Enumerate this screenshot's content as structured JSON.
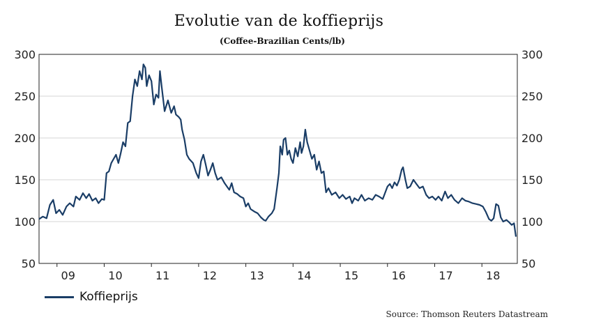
{
  "chart_data": {
    "type": "line",
    "title": "Evolutie van de koffieprijs",
    "subtitle": "(Coffee-Brazilian Cents/lb)",
    "source": "Source: Thomson Reuters Datastream",
    "ylim": [
      50,
      300
    ],
    "y_ticks": [
      50,
      100,
      150,
      200,
      250,
      300
    ],
    "y_tick_labels": [
      "50",
      "100",
      "150",
      "200",
      "250",
      "300"
    ],
    "x_range": [
      2008.62,
      2018.75
    ],
    "x_tick_labels": [
      {
        "label": "09",
        "x": 2009.0
      },
      {
        "label": "10",
        "x": 2010.0
      },
      {
        "label": "11",
        "x": 2011.0
      },
      {
        "label": "12",
        "x": 2012.0
      },
      {
        "label": "13",
        "x": 2013.0
      },
      {
        "label": "14",
        "x": 2014.0
      },
      {
        "label": "15",
        "x": 2015.0
      },
      {
        "label": "16",
        "x": 2016.0
      },
      {
        "label": "17",
        "x": 2017.0
      },
      {
        "label": "18",
        "x": 2018.0
      }
    ],
    "grid": "horizontal",
    "legend_position": "bottom-left",
    "color": "#1a3d66",
    "series": [
      {
        "name": "Koffieprijs",
        "points": [
          [
            2008.62,
            103
          ],
          [
            2008.7,
            106
          ],
          [
            2008.78,
            104
          ],
          [
            2008.85,
            120
          ],
          [
            2008.92,
            126
          ],
          [
            2008.98,
            110
          ],
          [
            2009.05,
            114
          ],
          [
            2009.12,
            108
          ],
          [
            2009.2,
            118
          ],
          [
            2009.27,
            122
          ],
          [
            2009.35,
            118
          ],
          [
            2009.4,
            130
          ],
          [
            2009.48,
            126
          ],
          [
            2009.55,
            134
          ],
          [
            2009.62,
            128
          ],
          [
            2009.68,
            133
          ],
          [
            2009.75,
            125
          ],
          [
            2009.82,
            128
          ],
          [
            2009.88,
            122
          ],
          [
            2009.95,
            127
          ],
          [
            2010.0,
            126
          ],
          [
            2010.05,
            158
          ],
          [
            2010.1,
            160
          ],
          [
            2010.15,
            170
          ],
          [
            2010.2,
            175
          ],
          [
            2010.25,
            180
          ],
          [
            2010.3,
            170
          ],
          [
            2010.35,
            182
          ],
          [
            2010.4,
            195
          ],
          [
            2010.45,
            190
          ],
          [
            2010.5,
            218
          ],
          [
            2010.55,
            220
          ],
          [
            2010.6,
            250
          ],
          [
            2010.65,
            270
          ],
          [
            2010.7,
            262
          ],
          [
            2010.75,
            280
          ],
          [
            2010.8,
            270
          ],
          [
            2010.83,
            288
          ],
          [
            2010.87,
            284
          ],
          [
            2010.9,
            262
          ],
          [
            2010.95,
            275
          ],
          [
            2011.0,
            268
          ],
          [
            2011.05,
            240
          ],
          [
            2011.1,
            252
          ],
          [
            2011.15,
            248
          ],
          [
            2011.18,
            280
          ],
          [
            2011.22,
            260
          ],
          [
            2011.28,
            232
          ],
          [
            2011.35,
            245
          ],
          [
            2011.42,
            230
          ],
          [
            2011.48,
            238
          ],
          [
            2011.52,
            228
          ],
          [
            2011.58,
            225
          ],
          [
            2011.62,
            222
          ],
          [
            2011.65,
            210
          ],
          [
            2011.7,
            198
          ],
          [
            2011.75,
            180
          ],
          [
            2011.8,
            175
          ],
          [
            2011.88,
            170
          ],
          [
            2011.95,
            158
          ],
          [
            2012.0,
            152
          ],
          [
            2012.05,
            172
          ],
          [
            2012.1,
            180
          ],
          [
            2012.15,
            168
          ],
          [
            2012.2,
            155
          ],
          [
            2012.25,
            162
          ],
          [
            2012.3,
            170
          ],
          [
            2012.35,
            158
          ],
          [
            2012.4,
            150
          ],
          [
            2012.48,
            153
          ],
          [
            2012.55,
            146
          ],
          [
            2012.6,
            142
          ],
          [
            2012.65,
            138
          ],
          [
            2012.7,
            146
          ],
          [
            2012.75,
            135
          ],
          [
            2012.82,
            133
          ],
          [
            2012.88,
            130
          ],
          [
            2012.95,
            128
          ],
          [
            2013.0,
            118
          ],
          [
            2013.05,
            122
          ],
          [
            2013.1,
            115
          ],
          [
            2013.18,
            112
          ],
          [
            2013.25,
            110
          ],
          [
            2013.32,
            105
          ],
          [
            2013.38,
            102
          ],
          [
            2013.42,
            101
          ],
          [
            2013.48,
            106
          ],
          [
            2013.55,
            110
          ],
          [
            2013.6,
            115
          ],
          [
            2013.66,
            140
          ],
          [
            2013.7,
            158
          ],
          [
            2013.73,
            190
          ],
          [
            2013.77,
            180
          ],
          [
            2013.8,
            198
          ],
          [
            2013.84,
            200
          ],
          [
            2013.88,
            180
          ],
          [
            2013.92,
            185
          ],
          [
            2013.96,
            175
          ],
          [
            2014.0,
            170
          ],
          [
            2014.05,
            188
          ],
          [
            2014.1,
            178
          ],
          [
            2014.15,
            195
          ],
          [
            2014.18,
            182
          ],
          [
            2014.22,
            190
          ],
          [
            2014.26,
            210
          ],
          [
            2014.3,
            195
          ],
          [
            2014.35,
            185
          ],
          [
            2014.4,
            175
          ],
          [
            2014.45,
            180
          ],
          [
            2014.5,
            162
          ],
          [
            2014.55,
            172
          ],
          [
            2014.6,
            158
          ],
          [
            2014.65,
            160
          ],
          [
            2014.7,
            135
          ],
          [
            2014.75,
            140
          ],
          [
            2014.82,
            132
          ],
          [
            2014.9,
            135
          ],
          [
            2014.98,
            128
          ],
          [
            2015.05,
            132
          ],
          [
            2015.12,
            127
          ],
          [
            2015.2,
            130
          ],
          [
            2015.25,
            122
          ],
          [
            2015.3,
            128
          ],
          [
            2015.38,
            125
          ],
          [
            2015.45,
            132
          ],
          [
            2015.52,
            125
          ],
          [
            2015.6,
            128
          ],
          [
            2015.68,
            126
          ],
          [
            2015.75,
            132
          ],
          [
            2015.82,
            130
          ],
          [
            2015.9,
            127
          ],
          [
            2016.0,
            142
          ],
          [
            2016.05,
            145
          ],
          [
            2016.1,
            140
          ],
          [
            2016.15,
            147
          ],
          [
            2016.2,
            143
          ],
          [
            2016.25,
            150
          ],
          [
            2016.3,
            162
          ],
          [
            2016.33,
            165
          ],
          [
            2016.38,
            150
          ],
          [
            2016.42,
            140
          ],
          [
            2016.48,
            142
          ],
          [
            2016.55,
            150
          ],
          [
            2016.6,
            146
          ],
          [
            2016.68,
            140
          ],
          [
            2016.75,
            142
          ],
          [
            2016.82,
            132
          ],
          [
            2016.88,
            128
          ],
          [
            2016.95,
            130
          ],
          [
            2017.02,
            126
          ],
          [
            2017.08,
            130
          ],
          [
            2017.15,
            125
          ],
          [
            2017.22,
            136
          ],
          [
            2017.28,
            128
          ],
          [
            2017.35,
            132
          ],
          [
            2017.42,
            126
          ],
          [
            2017.5,
            122
          ],
          [
            2017.58,
            128
          ],
          [
            2017.65,
            125
          ],
          [
            2017.72,
            124
          ],
          [
            2017.8,
            122
          ],
          [
            2017.88,
            121
          ],
          [
            2017.95,
            120
          ],
          [
            2018.02,
            118
          ],
          [
            2018.08,
            112
          ],
          [
            2018.15,
            103
          ],
          [
            2018.2,
            101
          ],
          [
            2018.25,
            104
          ],
          [
            2018.3,
            121
          ],
          [
            2018.35,
            119
          ],
          [
            2018.4,
            105
          ],
          [
            2018.45,
            100
          ],
          [
            2018.52,
            102
          ],
          [
            2018.58,
            99
          ],
          [
            2018.63,
            96
          ],
          [
            2018.68,
            98
          ],
          [
            2018.72,
            82
          ]
        ]
      }
    ]
  }
}
